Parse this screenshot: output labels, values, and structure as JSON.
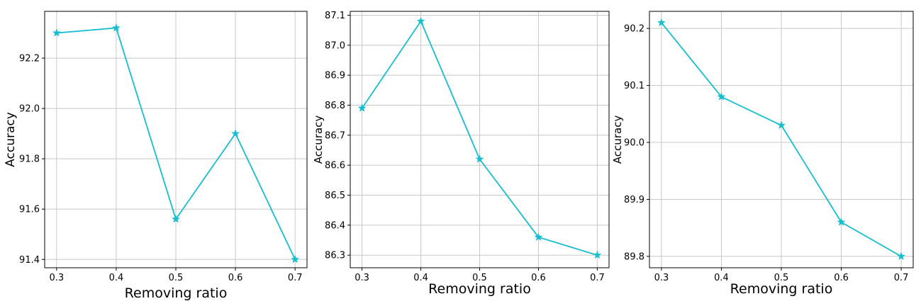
{
  "chart_data": [
    {
      "type": "line",
      "xlabel": "Removing ratio",
      "ylabel": "Accuracy",
      "x": [
        0.3,
        0.4,
        0.5,
        0.6,
        0.7
      ],
      "series": [
        {
          "values": [
            92.3,
            92.32,
            91.56,
            91.9,
            91.4
          ]
        }
      ],
      "xticks": [
        "0.3",
        "0.4",
        "0.5",
        "0.6",
        "0.7"
      ],
      "yticks": [
        "91.4",
        "91.6",
        "91.8",
        "92.0",
        "92.2"
      ],
      "xlim": [
        0.28,
        0.72
      ],
      "ylim": [
        91.367,
        92.386
      ],
      "marker": "star",
      "color": "#17BECF",
      "grid": true
    },
    {
      "type": "line",
      "xlabel": "Removing ratio",
      "ylabel": "Accuracy",
      "x": [
        0.3,
        0.4,
        0.5,
        0.6,
        0.7
      ],
      "series": [
        {
          "values": [
            86.79,
            87.08,
            86.62,
            86.36,
            86.3
          ]
        }
      ],
      "xticks": [
        "0.3",
        "0.4",
        "0.5",
        "0.6",
        "0.7"
      ],
      "yticks": [
        "86.3",
        "86.4",
        "86.5",
        "86.6",
        "86.7",
        "86.8",
        "86.9",
        "87.0",
        "87.1"
      ],
      "xlim": [
        0.28,
        0.72
      ],
      "ylim": [
        86.258,
        87.113
      ],
      "marker": "star",
      "color": "#17BECF",
      "grid": true
    },
    {
      "type": "line",
      "xlabel": "Removing ratio",
      "ylabel": "Accuracy",
      "x": [
        0.3,
        0.4,
        0.5,
        0.6,
        0.7
      ],
      "series": [
        {
          "values": [
            90.21,
            90.08,
            90.03,
            89.86,
            89.8
          ]
        }
      ],
      "xticks": [
        "0.3",
        "0.4",
        "0.5",
        "0.6",
        "0.7"
      ],
      "yticks": [
        "89.8",
        "89.9",
        "90.0",
        "90.1",
        "90.2"
      ],
      "xlim": [
        0.28,
        0.72
      ],
      "ylim": [
        89.78,
        90.23
      ],
      "marker": "star",
      "color": "#17BECF",
      "grid": true
    }
  ]
}
